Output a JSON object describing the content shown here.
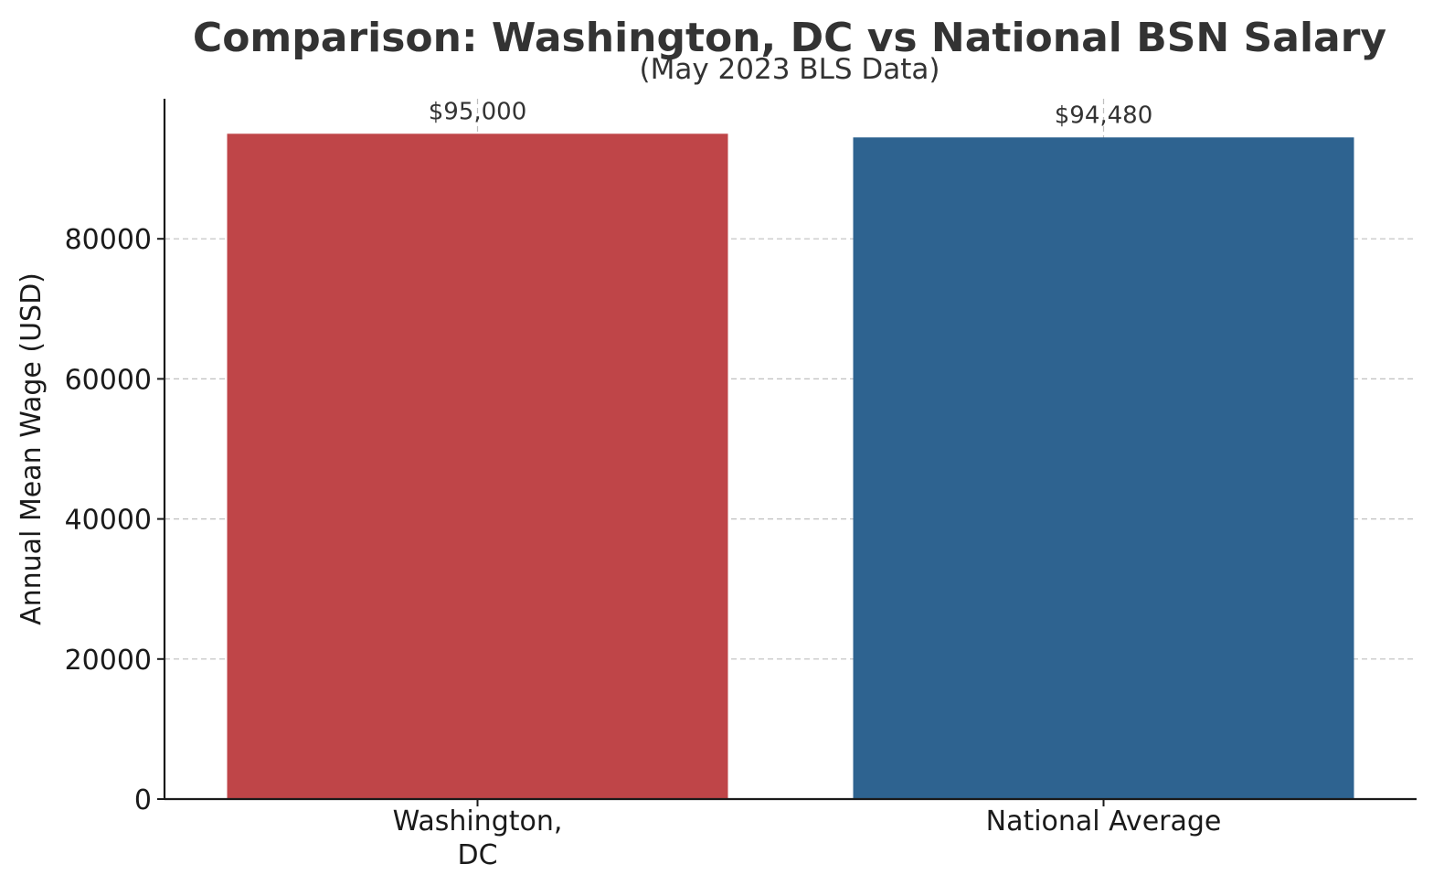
{
  "chart_data": {
    "type": "bar",
    "title": "Comparison: Washington, DC vs National BSN Salary",
    "subtitle": "(May 2023 BLS Data)",
    "xlabel": "",
    "ylabel": "Annual Mean Wage (USD)",
    "ylim": [
      0,
      100000
    ],
    "yticks": [
      0,
      20000,
      40000,
      60000,
      80000
    ],
    "grid": true,
    "categories": [
      {
        "lines": [
          "Washington,",
          "DC"
        ]
      },
      {
        "lines": [
          "National Average"
        ]
      }
    ],
    "values": [
      95000,
      94480
    ],
    "value_labels": [
      "$95,000",
      "$94,480"
    ],
    "colors": [
      "#bf4548",
      "#2e6390"
    ]
  }
}
